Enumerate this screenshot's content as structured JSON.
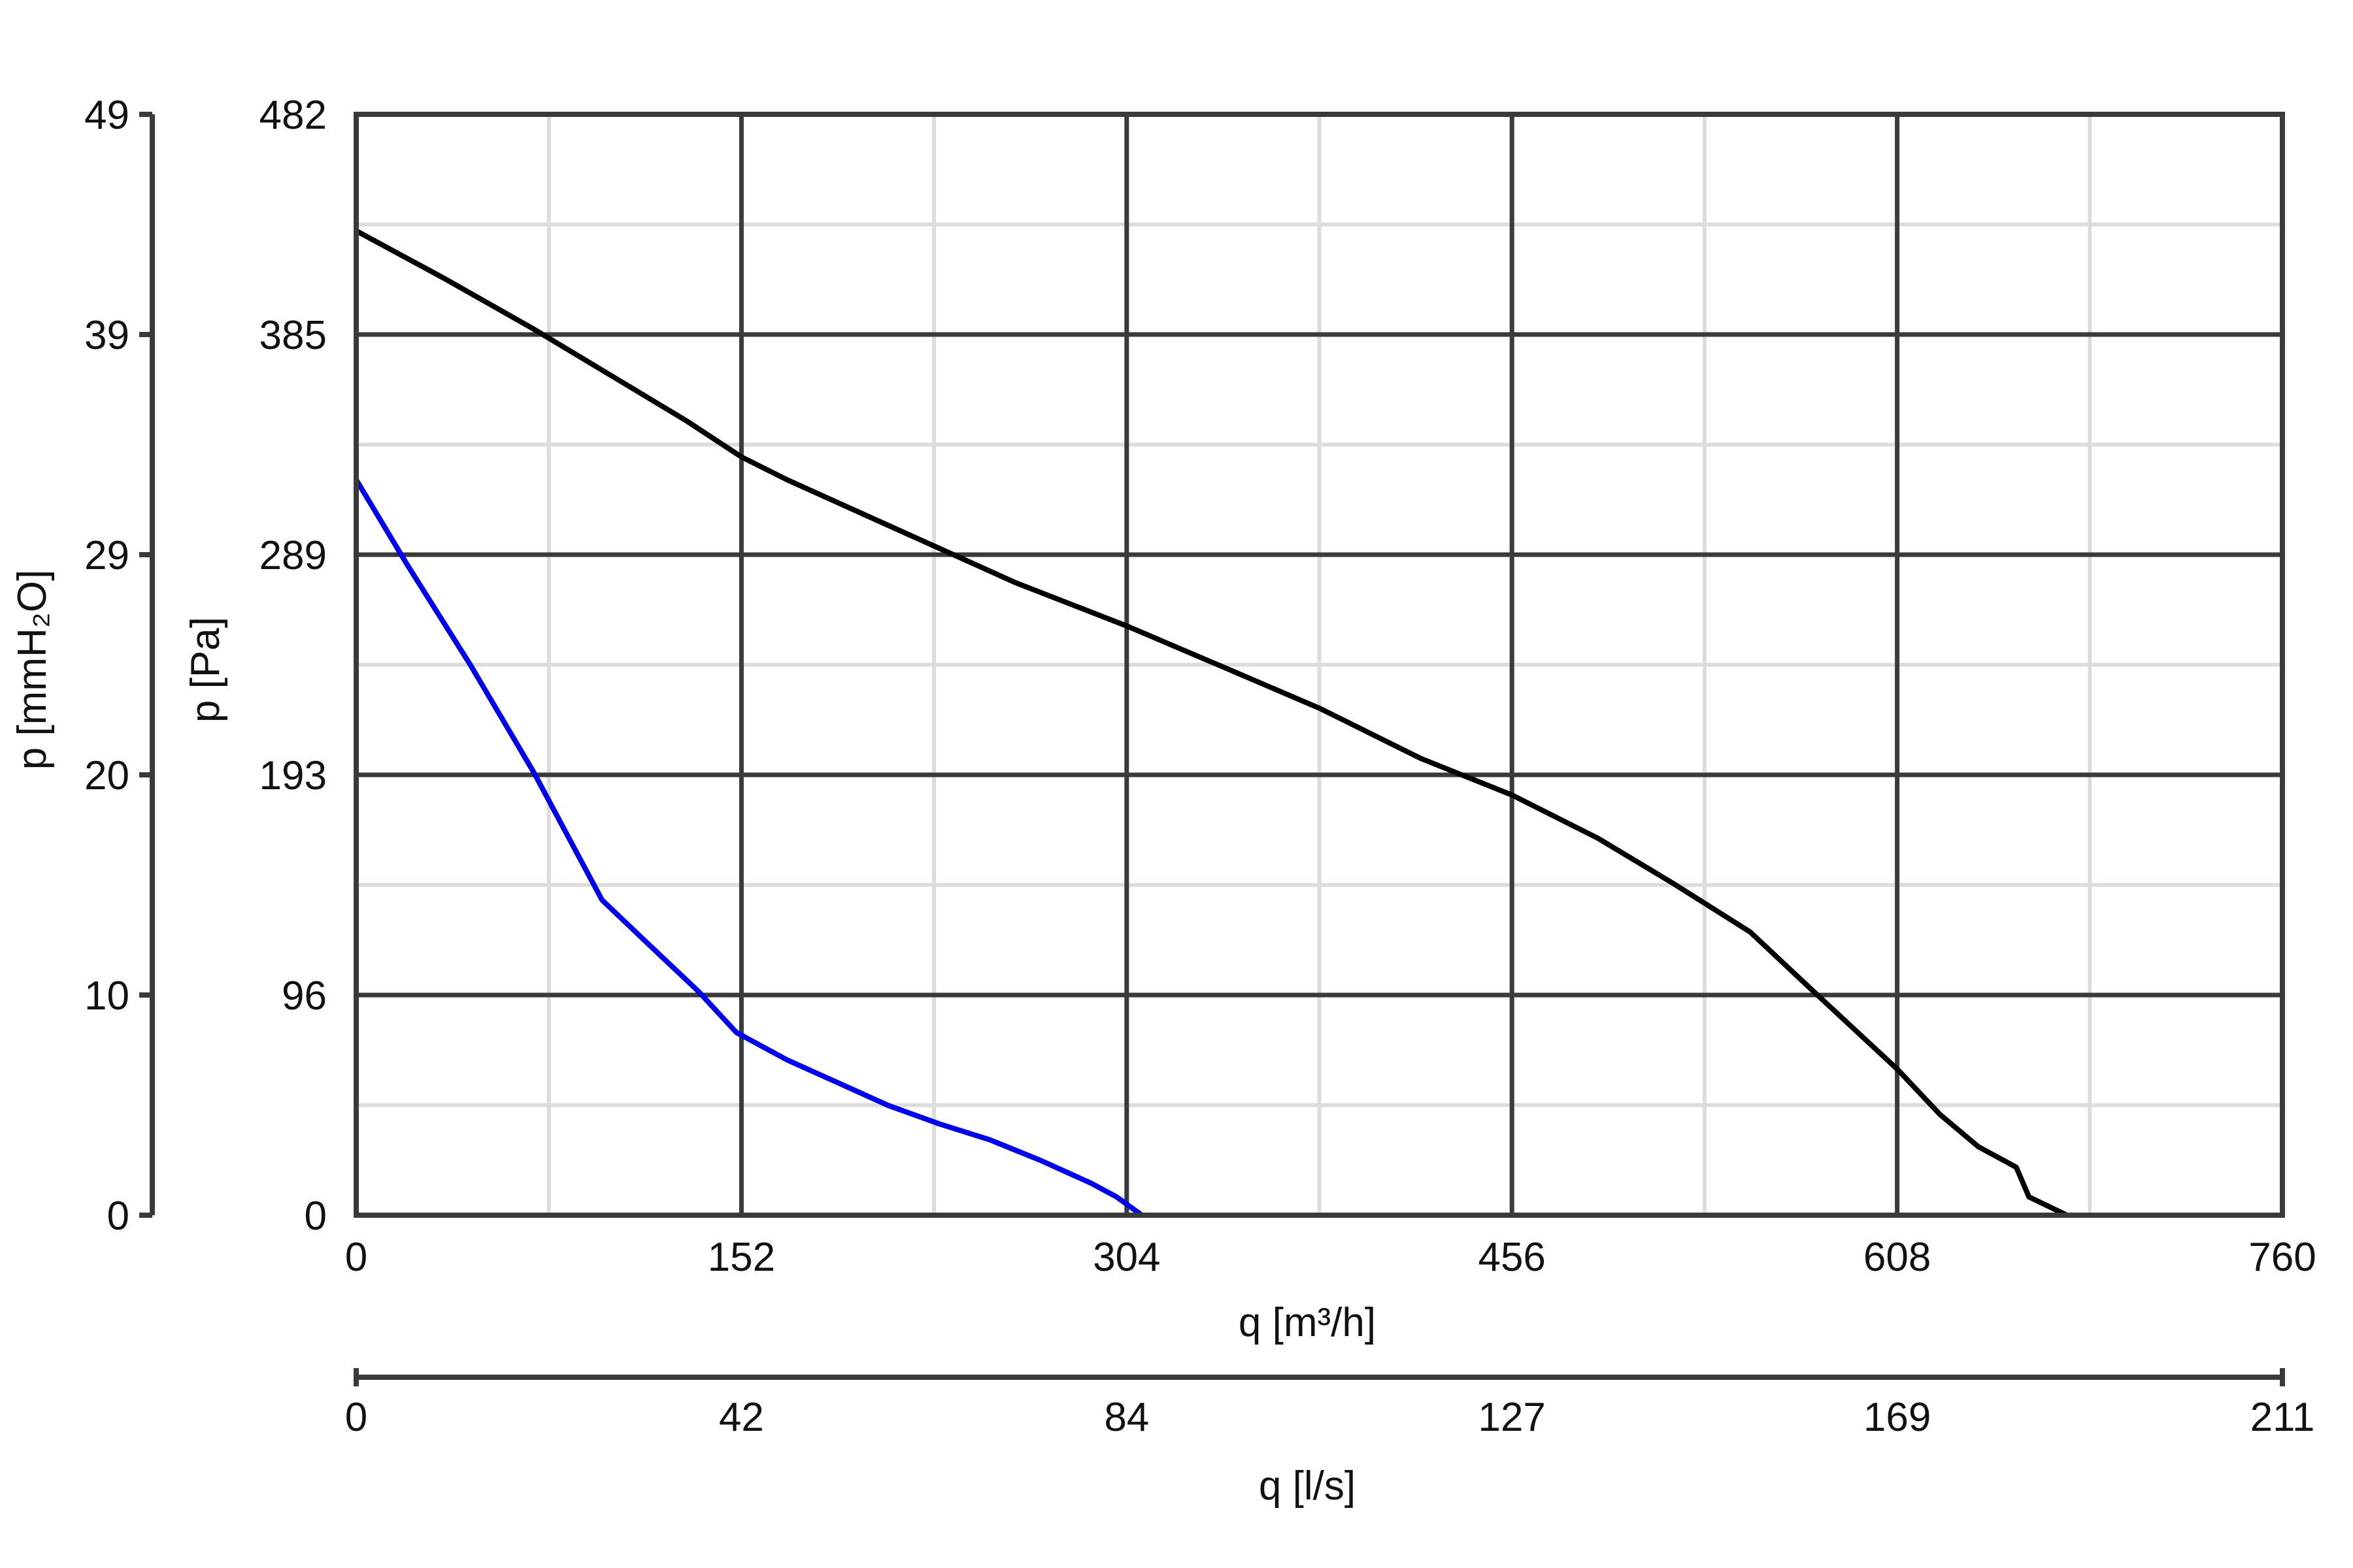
{
  "chart_data": {
    "type": "line",
    "title": "",
    "x_axis_primary": {
      "label": "q [m³/h]",
      "range": [
        0,
        760
      ],
      "ticks": [
        "0",
        "152",
        "304",
        "456",
        "608",
        "760"
      ]
    },
    "x_axis_secondary": {
      "label": "q [l/s]",
      "range": [
        0,
        211
      ],
      "ticks": [
        "0",
        "42",
        "84",
        "127",
        "169",
        "211"
      ]
    },
    "y_axis_primary": {
      "label": "p [Pa]",
      "range": [
        0,
        482
      ],
      "ticks": [
        "0",
        "96",
        "193",
        "289",
        "385",
        "482"
      ]
    },
    "y_axis_secondary": {
      "label": "p [mmH₂O]",
      "range": [
        0,
        49
      ],
      "ticks": [
        "0",
        "10",
        "20",
        "29",
        "39",
        "49"
      ]
    },
    "grid": true,
    "series": [
      {
        "color": "#000000",
        "points": [
          [
            0,
            431
          ],
          [
            35,
            410
          ],
          [
            70,
            388
          ],
          [
            100,
            368
          ],
          [
            130,
            348
          ],
          [
            152,
            332
          ],
          [
            170,
            322
          ],
          [
            200,
            307
          ],
          [
            230,
            292
          ],
          [
            260,
            277
          ],
          [
            304,
            258
          ],
          [
            340,
            241
          ],
          [
            380,
            222
          ],
          [
            420,
            200
          ],
          [
            456,
            184
          ],
          [
            490,
            165
          ],
          [
            520,
            145
          ],
          [
            550,
            124
          ],
          [
            575,
            98
          ],
          [
            608,
            64
          ],
          [
            625,
            44
          ],
          [
            640,
            30
          ],
          [
            655,
            21
          ],
          [
            660,
            8
          ],
          [
            675,
            0
          ]
        ]
      },
      {
        "color": "#0000ee",
        "points": [
          [
            0,
            322
          ],
          [
            20,
            285
          ],
          [
            45,
            241
          ],
          [
            70,
            194
          ],
          [
            97,
            138
          ],
          [
            115,
            119
          ],
          [
            135,
            98
          ],
          [
            150,
            80
          ],
          [
            170,
            68
          ],
          [
            190,
            58
          ],
          [
            210,
            48
          ],
          [
            230,
            40
          ],
          [
            250,
            33
          ],
          [
            270,
            24
          ],
          [
            290,
            14
          ],
          [
            300,
            8
          ],
          [
            310,
            0
          ]
        ]
      }
    ],
    "colors": {
      "grid_major": "#3a3a3a",
      "grid_minor": "#dcdcdc",
      "axis": "#3a3a3a"
    }
  }
}
